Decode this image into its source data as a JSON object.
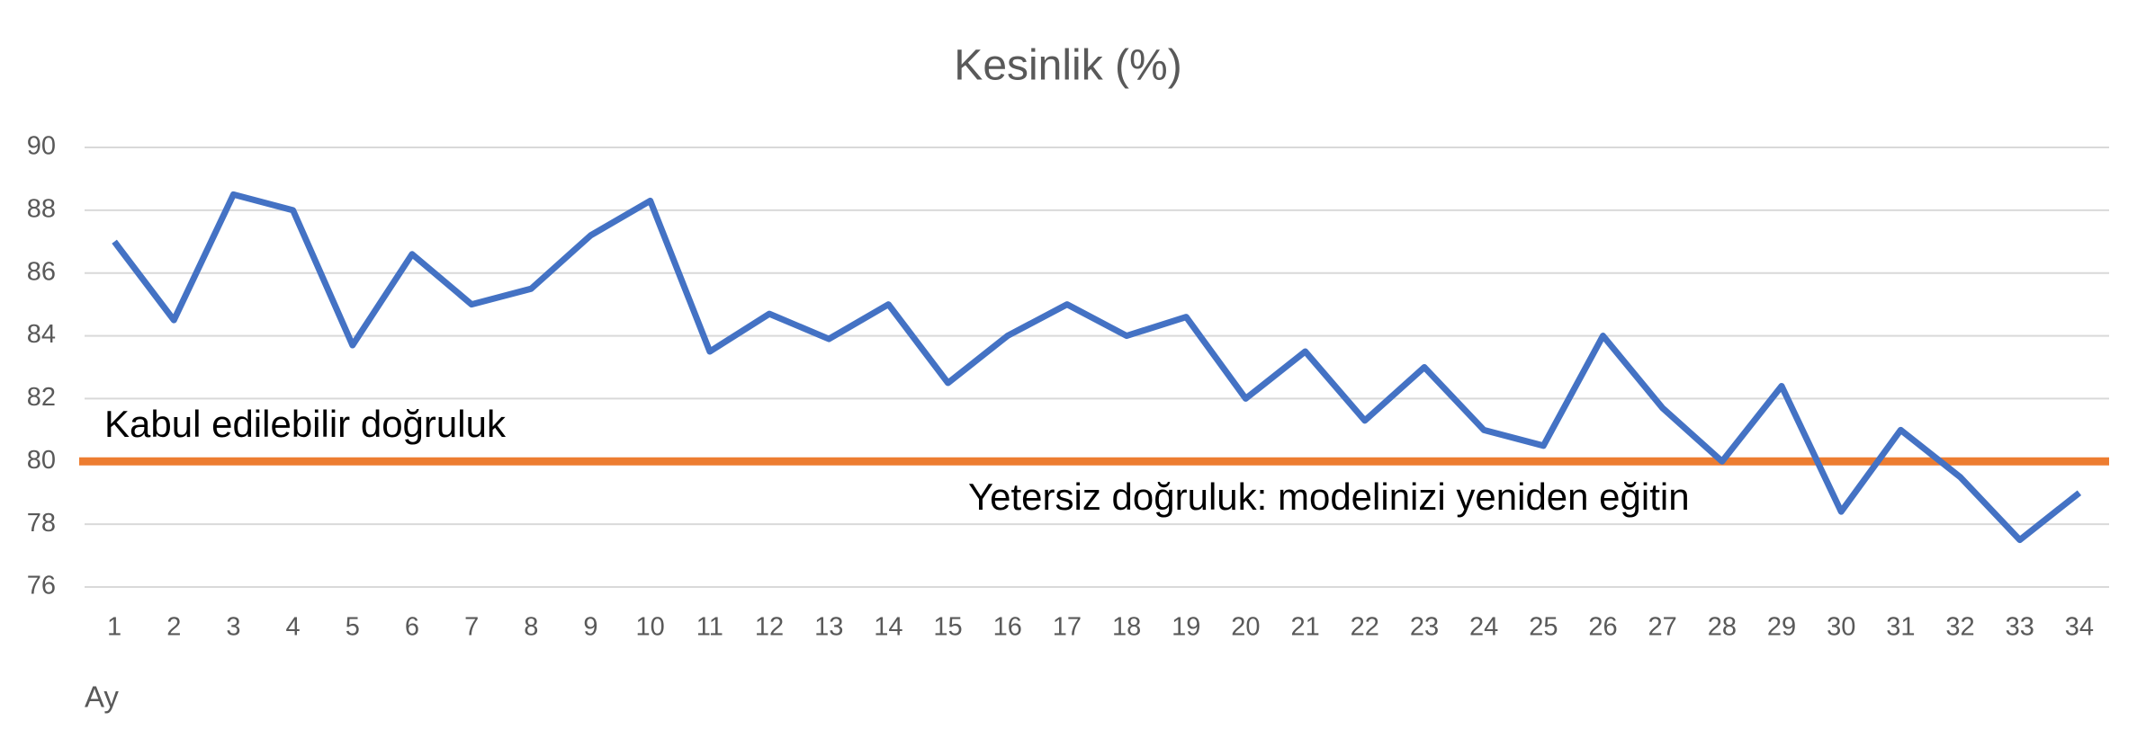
{
  "chart_data": {
    "type": "line",
    "title": "Kesinlik (%)",
    "x_label": "Ay",
    "x": [
      1,
      2,
      3,
      4,
      5,
      6,
      7,
      8,
      9,
      10,
      11,
      12,
      13,
      14,
      15,
      16,
      17,
      18,
      19,
      20,
      21,
      22,
      23,
      24,
      25,
      26,
      27,
      28,
      29,
      30,
      31,
      32,
      33,
      34
    ],
    "series": [
      {
        "name": "Kesinlik",
        "color": "#4472c4",
        "values": [
          87,
          84.5,
          88.5,
          88,
          83.7,
          86.6,
          85,
          85.5,
          87.2,
          88.3,
          83.5,
          84.7,
          83.9,
          85,
          82.5,
          84,
          85,
          84,
          84.6,
          82,
          83.5,
          81.3,
          83,
          81,
          80.5,
          84,
          81.7,
          80,
          82.4,
          78.4,
          81,
          79.5,
          77.5,
          79
        ]
      }
    ],
    "xlim": [
      0.5,
      34.5
    ],
    "ylim": [
      76,
      90
    ],
    "yticks": [
      76,
      78,
      80,
      82,
      84,
      86,
      88,
      90
    ],
    "grid": true,
    "threshold": {
      "value": 80,
      "color": "#ed7d31"
    },
    "annotations": [
      "Kabul edilebilir doğruluk",
      "Yetersiz doğruluk: modelinizi yeniden eğitin"
    ]
  }
}
